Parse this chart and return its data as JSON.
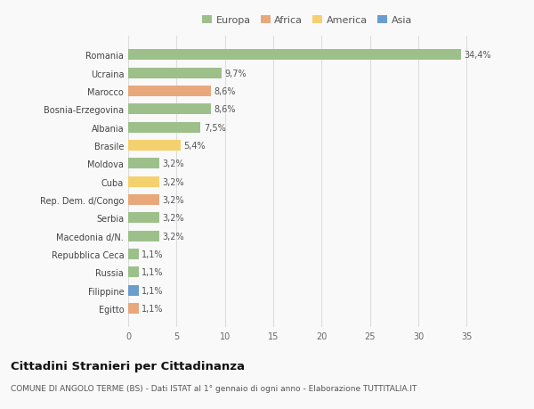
{
  "countries": [
    "Romania",
    "Ucraina",
    "Marocco",
    "Bosnia-Erzegovina",
    "Albania",
    "Brasile",
    "Moldova",
    "Cuba",
    "Rep. Dem. d/Congo",
    "Serbia",
    "Macedonia d/N.",
    "Repubblica Ceca",
    "Russia",
    "Filippine",
    "Egitto"
  ],
  "values": [
    34.4,
    9.7,
    8.6,
    8.6,
    7.5,
    5.4,
    3.2,
    3.2,
    3.2,
    3.2,
    3.2,
    1.1,
    1.1,
    1.1,
    1.1
  ],
  "labels": [
    "34,4%",
    "9,7%",
    "8,6%",
    "8,6%",
    "7,5%",
    "5,4%",
    "3,2%",
    "3,2%",
    "3,2%",
    "3,2%",
    "3,2%",
    "1,1%",
    "1,1%",
    "1,1%",
    "1,1%"
  ],
  "continents": [
    "Europa",
    "Europa",
    "Africa",
    "Europa",
    "Europa",
    "America",
    "Europa",
    "America",
    "Africa",
    "Europa",
    "Europa",
    "Europa",
    "Europa",
    "Asia",
    "Africa"
  ],
  "continent_colors": {
    "Europa": "#9dc08b",
    "Africa": "#e8a87c",
    "America": "#f5d06e",
    "Asia": "#6b9ecf"
  },
  "legend_order": [
    "Europa",
    "Africa",
    "America",
    "Asia"
  ],
  "title": "Cittadini Stranieri per Cittadinanza",
  "subtitle": "COMUNE DI ANGOLO TERME (BS) - Dati ISTAT al 1° gennaio di ogni anno - Elaborazione TUTTITALIA.IT",
  "xlim": [
    0,
    37
  ],
  "xticks": [
    0,
    5,
    10,
    15,
    20,
    25,
    30,
    35
  ],
  "bg_color": "#f9f9f9",
  "grid_color": "#dddddd",
  "bar_height": 0.6,
  "label_fontsize": 7.0,
  "tick_fontsize": 7.0,
  "title_fontsize": 9.5,
  "subtitle_fontsize": 6.5
}
